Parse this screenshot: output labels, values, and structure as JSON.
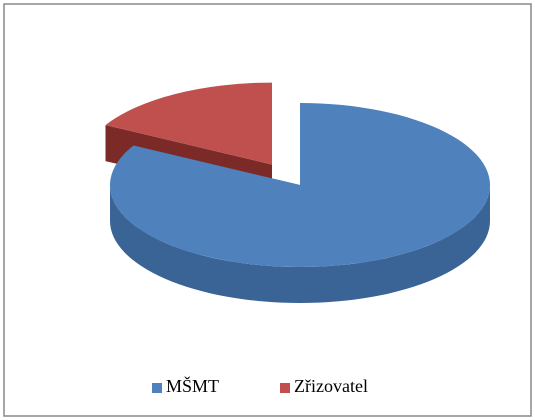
{
  "chart_data": {
    "type": "pie",
    "categories": [
      "MŠMT",
      "Zřizovatel"
    ],
    "values": [
      83,
      17
    ],
    "colors": [
      "#4f81bd",
      "#c0504d"
    ],
    "side_colors": [
      "#3b6496",
      "#7b2a27"
    ],
    "legend": "bottom",
    "start_angle": -90,
    "exploded": [
      false,
      true
    ]
  }
}
